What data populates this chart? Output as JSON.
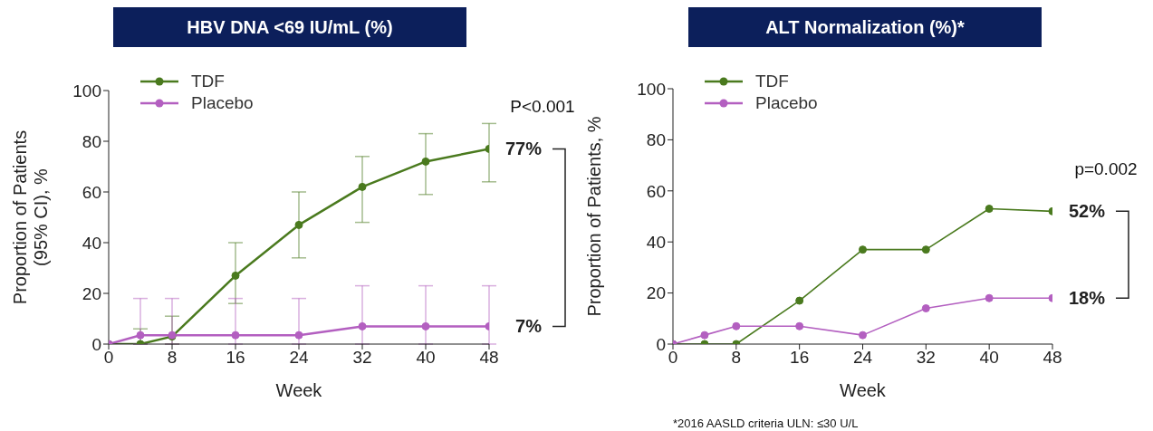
{
  "chart_data": [
    {
      "type": "line",
      "title": "HBV DNA <69 IU/mL (%)",
      "xlabel": "Week",
      "ylabel": "Proportion of Patients\n(95% CI), %",
      "x": [
        0,
        4,
        8,
        16,
        24,
        32,
        40,
        48
      ],
      "xlim": [
        0,
        48
      ],
      "xticks": [
        0,
        8,
        16,
        24,
        32,
        40,
        48
      ],
      "ylim": [
        0,
        100
      ],
      "yticks": [
        0,
        20,
        40,
        60,
        80,
        100
      ],
      "grid": false,
      "legend": "top left",
      "marker": "circle",
      "line_style": "solid",
      "series": [
        {
          "name": "TDF",
          "color": "#4a7a1e",
          "values": [
            0,
            0,
            3,
            27,
            47,
            62,
            72,
            77
          ],
          "errors": [
            null,
            [
              0,
              6
            ],
            [
              0,
              11
            ],
            [
              16,
              40
            ],
            [
              34,
              60
            ],
            [
              48,
              74
            ],
            [
              59,
              83
            ],
            [
              64,
              87
            ]
          ]
        },
        {
          "name": "Placebo",
          "color": "#b35fc0",
          "values": [
            0,
            3.5,
            3.5,
            3.5,
            3.5,
            7,
            7,
            7
          ],
          "errors": [
            null,
            [
              0,
              18
            ],
            [
              0,
              18
            ],
            [
              0,
              18
            ],
            [
              0,
              18
            ],
            [
              0,
              23
            ],
            [
              0,
              23
            ],
            [
              0,
              23
            ]
          ]
        }
      ],
      "annotations": [
        "P<0.001",
        "77%",
        "7%"
      ]
    },
    {
      "type": "line",
      "title": "ALT Normalization (%)*",
      "xlabel": "Week",
      "ylabel": "Proportion of Patients, %",
      "x": [
        0,
        4,
        8,
        16,
        24,
        32,
        40,
        48
      ],
      "xlim": [
        0,
        48
      ],
      "xticks": [
        0,
        8,
        16,
        24,
        32,
        40,
        48
      ],
      "ylim": [
        0,
        100
      ],
      "yticks": [
        0,
        20,
        40,
        60,
        80,
        100
      ],
      "grid": false,
      "legend": "top left",
      "marker": "circle",
      "line_style": "solid",
      "series": [
        {
          "name": "TDF",
          "color": "#4a7a1e",
          "values": [
            0,
            0,
            0,
            17,
            37,
            37,
            53,
            52
          ]
        },
        {
          "name": "Placebo",
          "color": "#b35fc0",
          "values": [
            0,
            3.5,
            7,
            7,
            3.5,
            14,
            18,
            18
          ]
        }
      ],
      "annotations": [
        "p=0.002",
        "52%",
        "18%",
        "*2016 AASLD criteria ULN: ≤30 U/L"
      ]
    }
  ]
}
